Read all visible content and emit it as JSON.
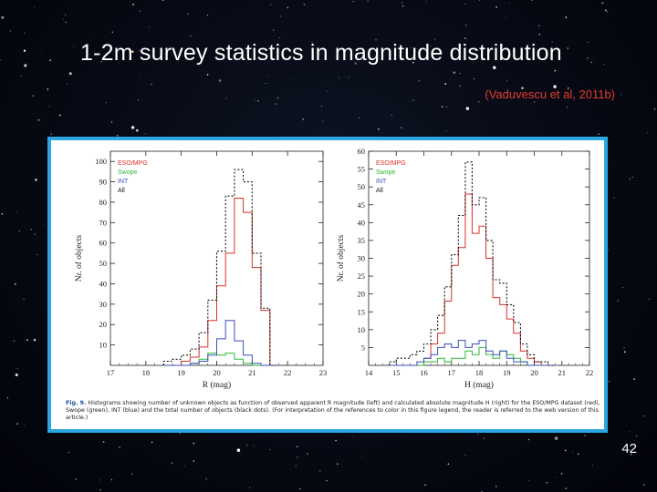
{
  "slide": {
    "title": "1-2m survey statistics in magnitude distribution",
    "citation": "(Vaduvescu et al, 2011b)",
    "page_number": "42"
  },
  "figure": {
    "caption_label": "Fig. 9.",
    "caption_text": "Histograms showing number of unknown objects as function of observed apparent R magnitude (left) and calculated absolute magnitude H (right) for the ESO/MPG dataset (red), Swope (green), INT (blue) and the total number of objects (black dots). (For interpretation of the references to color in this figure legend, the reader is referred to the web version of this article.)"
  },
  "colors": {
    "eso": "#d9302a",
    "swope": "#2fb63a",
    "int": "#3a4fb8",
    "all": "#111111",
    "frame": "#2aa7e0"
  },
  "chart_data": [
    {
      "type": "bar",
      "style": "step-histogram",
      "xlabel": "R (mag)",
      "ylabel": "Nr. of objects",
      "xlim": [
        17,
        23
      ],
      "ylim": [
        0,
        105
      ],
      "xticks": [
        17,
        18,
        19,
        20,
        21,
        22,
        23
      ],
      "yticks": [
        10,
        20,
        30,
        40,
        50,
        60,
        70,
        80,
        90,
        100
      ],
      "legend_position": "top-left",
      "bin_width": 0.25,
      "bin_starts": [
        18.5,
        18.75,
        19.0,
        19.25,
        19.5,
        19.75,
        20.0,
        20.25,
        20.5,
        20.75,
        21.0,
        21.25,
        21.5
      ],
      "series": [
        {
          "name": "ESO/MPG",
          "key": "eso",
          "values": [
            0,
            0,
            2,
            4,
            9,
            22,
            39,
            55,
            82,
            75,
            48,
            27,
            0
          ]
        },
        {
          "name": "Swope",
          "key": "swope",
          "values": [
            0,
            0,
            0,
            1,
            3,
            6,
            5,
            6,
            3,
            1,
            0,
            0,
            0
          ]
        },
        {
          "name": "INT",
          "key": "int",
          "values": [
            0,
            0,
            0,
            1,
            2,
            5,
            13,
            22,
            12,
            5,
            1,
            0,
            0
          ]
        },
        {
          "name": "All",
          "key": "all",
          "values": [
            2,
            3,
            5,
            8,
            16,
            32,
            56,
            83,
            96,
            90,
            55,
            28,
            0
          ]
        }
      ]
    },
    {
      "type": "bar",
      "style": "step-histogram",
      "xlabel": "H (mag)",
      "ylabel": "Nr. of objects",
      "xlim": [
        14,
        22
      ],
      "ylim": [
        0,
        60
      ],
      "xticks": [
        14,
        15,
        16,
        17,
        18,
        19,
        20,
        21,
        22
      ],
      "yticks": [
        5,
        10,
        15,
        20,
        25,
        30,
        35,
        40,
        45,
        50,
        55,
        60
      ],
      "legend_position": "top-left",
      "bin_width": 0.25,
      "bin_starts": [
        14.75,
        15.0,
        15.25,
        15.5,
        15.75,
        16.0,
        16.25,
        16.5,
        16.75,
        17.0,
        17.25,
        17.5,
        17.75,
        18.0,
        18.25,
        18.5,
        18.75,
        19.0,
        19.25,
        19.5,
        19.75,
        20.0,
        20.25,
        20.5
      ],
      "series": [
        {
          "name": "ESO/MPG",
          "key": "eso",
          "values": [
            0,
            0,
            0,
            0,
            0,
            2,
            6,
            9,
            18,
            28,
            33,
            48,
            37,
            39,
            30,
            19,
            17,
            13,
            9,
            4,
            2,
            1,
            0,
            0
          ]
        },
        {
          "name": "Swope",
          "key": "swope",
          "values": [
            0,
            0,
            0,
            0,
            0,
            1,
            1,
            2,
            1,
            2,
            2,
            4,
            3,
            5,
            3,
            2,
            4,
            3,
            2,
            1,
            0,
            0,
            0,
            0
          ]
        },
        {
          "name": "INT",
          "key": "int",
          "values": [
            0,
            0,
            0,
            0,
            1,
            2,
            3,
            5,
            6,
            5,
            7,
            5,
            6,
            7,
            4,
            3,
            4,
            2,
            1,
            1,
            0,
            0,
            0,
            0
          ]
        },
        {
          "name": "All",
          "key": "all",
          "values": [
            1,
            2,
            2,
            3,
            4,
            6,
            10,
            14,
            22,
            31,
            42,
            57,
            45,
            47,
            35,
            24,
            23,
            17,
            12,
            6,
            3,
            1,
            1,
            0
          ]
        }
      ]
    }
  ]
}
